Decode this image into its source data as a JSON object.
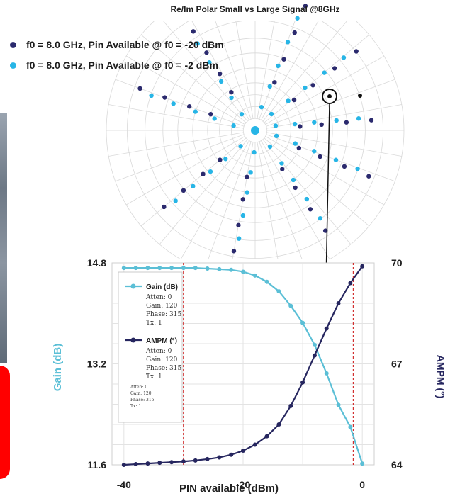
{
  "polar": {
    "title": "Re/Im Polar Small vs Large Signal @8GHz",
    "legend": [
      {
        "label": "f0 = 8.0 GHz, Pin Available @ f0 = -20 dBm",
        "color": "#2b2a6e"
      },
      {
        "label": "f0 = 8.0 GHz, Pin Available @ f0 = -2 dBm",
        "color": "#27b5e6"
      }
    ]
  },
  "chart_data": {
    "type": "line",
    "x_label": "PIN available (dBm)",
    "x_ticks": [
      "-40",
      "-20",
      "0"
    ],
    "x_range": [
      -42,
      2
    ],
    "y_left": {
      "label": "Gain (dB)",
      "ticks": [
        "14.8",
        "13.2",
        "11.6"
      ],
      "range": [
        11.6,
        14.8
      ]
    },
    "y_right": {
      "label": "AMPM (°)",
      "ticks": [
        "70",
        "67",
        "64"
      ],
      "range": [
        64,
        70
      ]
    },
    "markers_vertical": [
      -30,
      -1.5
    ],
    "colors": {
      "gain": "#5bbfd6",
      "ampm": "#26265f",
      "marker": "#d23030"
    },
    "series": [
      {
        "name": "Gain (dB)",
        "axis": "left",
        "x": [
          -40,
          -38,
          -36,
          -34,
          -32,
          -30,
          -28,
          -26,
          -24,
          -22,
          -20,
          -18,
          -16,
          -14,
          -12,
          -10,
          -8,
          -6,
          -4,
          -2,
          0
        ],
        "y": [
          14.72,
          14.72,
          14.72,
          14.72,
          14.72,
          14.72,
          14.72,
          14.71,
          14.7,
          14.69,
          14.66,
          14.6,
          14.5,
          14.35,
          14.12,
          13.85,
          13.5,
          13.05,
          12.55,
          12.2,
          11.62
        ]
      },
      {
        "name": "AMPM (°)",
        "axis": "right",
        "x": [
          -40,
          -38,
          -36,
          -34,
          -32,
          -30,
          -28,
          -26,
          -24,
          -22,
          -20,
          -18,
          -16,
          -14,
          -12,
          -10,
          -8,
          -6,
          -4,
          -2,
          0
        ],
        "y": [
          64.0,
          64.02,
          64.04,
          64.06,
          64.08,
          64.1,
          64.13,
          64.17,
          64.22,
          64.3,
          64.42,
          64.6,
          64.85,
          65.2,
          65.75,
          66.45,
          67.25,
          68.05,
          68.8,
          69.4,
          69.9
        ]
      }
    ],
    "legend_box": [
      {
        "title": "Gain (dB)",
        "lines": [
          "Atten: 0",
          "Gain: 120",
          "Phase: 315",
          "Tx: 1"
        ]
      },
      {
        "title": "AMPM (°)",
        "lines": [
          "Atten: 0",
          "Gain: 120",
          "Phase: 315",
          "Tx: 1"
        ]
      },
      {
        "title": "",
        "lines": [
          "Atten: 0",
          "Gain: 120",
          "Phase: 315",
          "Tx: 1"
        ]
      }
    ]
  }
}
